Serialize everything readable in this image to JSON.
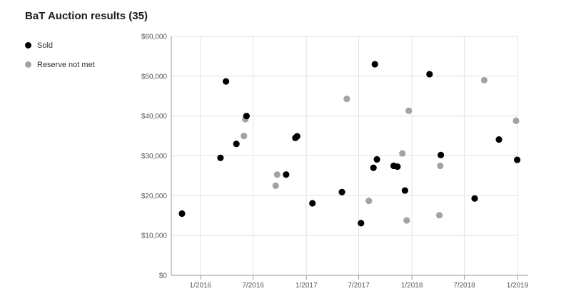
{
  "header": {
    "title": "BaT Auction results (35)"
  },
  "legend": [
    {
      "label": "Sold",
      "color": "#000000"
    },
    {
      "label": "Reserve not met",
      "color": "#a3a3a3"
    }
  ],
  "chart_data": {
    "type": "scatter",
    "title": "BaT Auction results (35)",
    "xlabel": "",
    "ylabel": "",
    "x_type": "date",
    "xlim": [
      "2015-09-22",
      "2019-01-01"
    ],
    "ylim": [
      0,
      60000
    ],
    "y_ticks": [
      0,
      10000,
      20000,
      30000,
      40000,
      50000,
      60000
    ],
    "y_tick_labels": [
      "$0",
      "$10,000",
      "$20,000",
      "$30,000",
      "$40,000",
      "$50,000",
      "$60,000"
    ],
    "x_ticks": [
      "2016-01-01",
      "2016-07-01",
      "2017-01-01",
      "2017-07-01",
      "2018-01-01",
      "2018-07-01",
      "2019-01-01"
    ],
    "x_tick_labels": [
      "1/2016",
      "7/2016",
      "1/2017",
      "7/2017",
      "1/2018",
      "7/2018",
      "1/2019"
    ],
    "grid": true,
    "legend_position": "top-left",
    "series": [
      {
        "name": "Sold",
        "color": "#000000",
        "points": [
          {
            "x": "2015-10-29",
            "y": 15500
          },
          {
            "x": "2016-03-10",
            "y": 29500
          },
          {
            "x": "2016-03-29",
            "y": 48700
          },
          {
            "x": "2016-05-04",
            "y": 33000
          },
          {
            "x": "2016-06-08",
            "y": 40000
          },
          {
            "x": "2016-10-23",
            "y": 25300
          },
          {
            "x": "2016-11-24",
            "y": 34500
          },
          {
            "x": "2016-11-30",
            "y": 34900
          },
          {
            "x": "2017-01-22",
            "y": 18100
          },
          {
            "x": "2017-05-04",
            "y": 20900
          },
          {
            "x": "2017-07-09",
            "y": 13100
          },
          {
            "x": "2017-08-21",
            "y": 27000
          },
          {
            "x": "2017-08-26",
            "y": 53000
          },
          {
            "x": "2017-09-02",
            "y": 29100
          },
          {
            "x": "2017-10-30",
            "y": 27500
          },
          {
            "x": "2017-11-12",
            "y": 27300
          },
          {
            "x": "2017-12-08",
            "y": 21300
          },
          {
            "x": "2018-03-03",
            "y": 50500
          },
          {
            "x": "2018-04-11",
            "y": 30200
          },
          {
            "x": "2018-08-06",
            "y": 19300
          },
          {
            "x": "2018-10-29",
            "y": 34100
          },
          {
            "x": "2018-12-31",
            "y": 29000
          }
        ]
      },
      {
        "name": "Reserve not met",
        "color": "#a3a3a3",
        "points": [
          {
            "x": "2016-05-30",
            "y": 35000
          },
          {
            "x": "2016-06-04",
            "y": 39200
          },
          {
            "x": "2016-09-17",
            "y": 22500
          },
          {
            "x": "2016-09-22",
            "y": 25300
          },
          {
            "x": "2017-05-21",
            "y": 44300
          },
          {
            "x": "2017-08-05",
            "y": 18700
          },
          {
            "x": "2017-11-29",
            "y": 30600
          },
          {
            "x": "2017-12-14",
            "y": 13800
          },
          {
            "x": "2017-12-21",
            "y": 41300
          },
          {
            "x": "2018-04-06",
            "y": 15100
          },
          {
            "x": "2018-04-09",
            "y": 27500
          },
          {
            "x": "2018-09-08",
            "y": 49000
          },
          {
            "x": "2018-12-27",
            "y": 38800
          }
        ]
      }
    ]
  }
}
